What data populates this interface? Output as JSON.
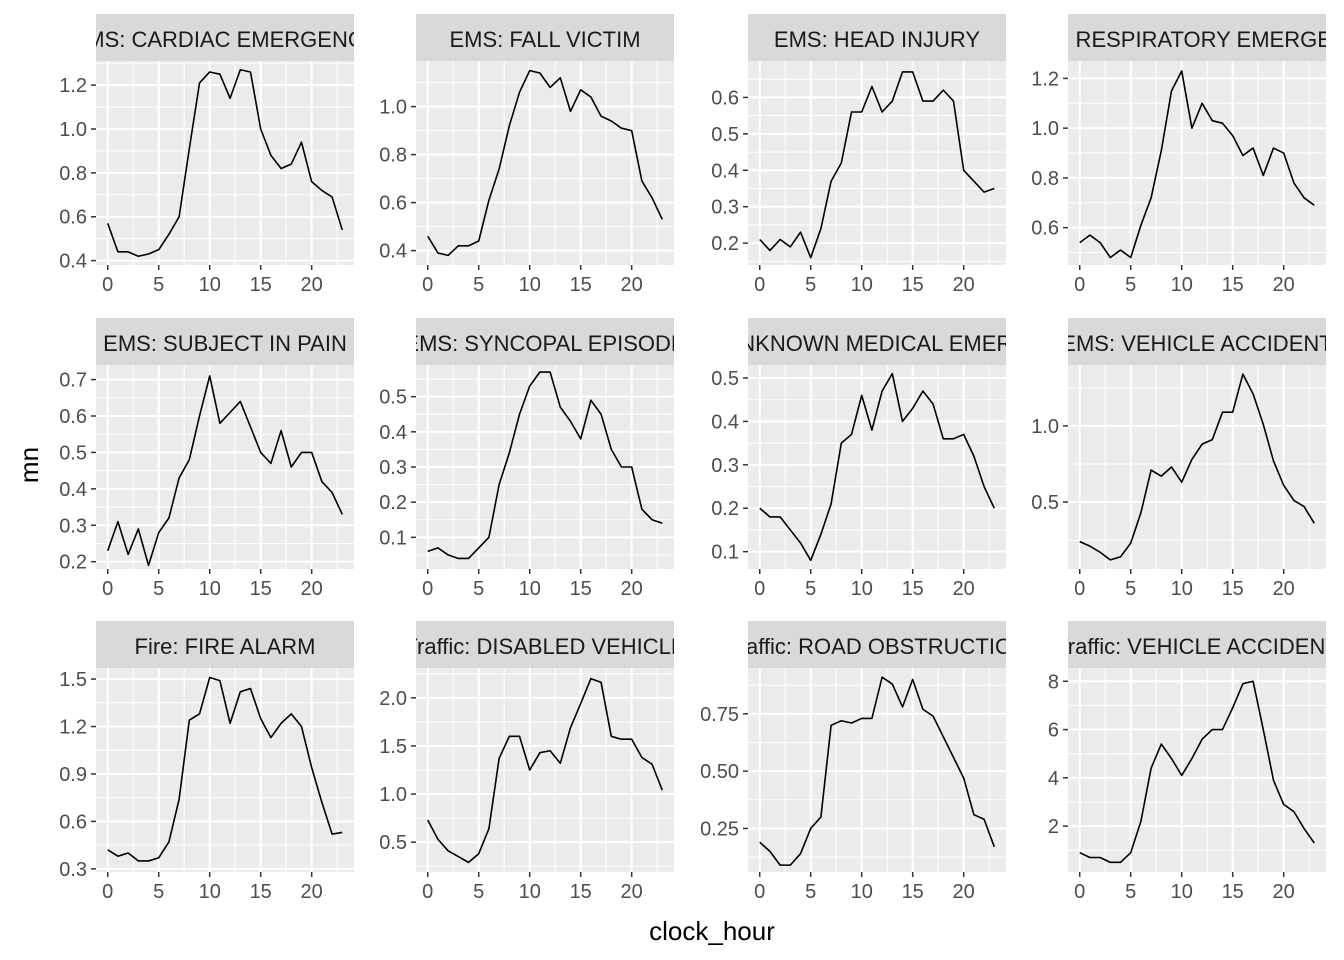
{
  "chart_data": {
    "type": "line",
    "xlabel": "clock_hour",
    "ylabel": "mn",
    "colors": {
      "line": "#000000",
      "panel_background": "#ebebeb",
      "strip_background": "#d9d9d9",
      "grid": "#ffffff"
    },
    "x": [
      0,
      1,
      2,
      3,
      4,
      5,
      6,
      7,
      8,
      9,
      10,
      11,
      12,
      13,
      14,
      15,
      16,
      17,
      18,
      19,
      20,
      21,
      22,
      23
    ],
    "panels": [
      {
        "title": "EMS: CARDIAC EMERGENCY",
        "ylim": [
          0.38,
          1.31
        ],
        "xticks": [
          0,
          5,
          10,
          15,
          20
        ],
        "yticks": [
          0.4,
          0.6,
          0.8,
          1.0,
          1.2
        ],
        "ytick_labels": [
          "0.4",
          "0.6",
          "0.8",
          "1.0",
          "1.2"
        ],
        "values": [
          0.57,
          0.44,
          0.44,
          0.42,
          0.43,
          0.45,
          0.52,
          0.6,
          0.91,
          1.21,
          1.26,
          1.25,
          1.14,
          1.27,
          1.26,
          1.0,
          0.88,
          0.82,
          0.84,
          0.94,
          0.76,
          0.72,
          0.69,
          0.54
        ]
      },
      {
        "title": "EMS: FALL VICTIM",
        "ylim": [
          0.34,
          1.19
        ],
        "xticks": [
          0,
          5,
          10,
          15,
          20
        ],
        "yticks": [
          0.4,
          0.6,
          0.8,
          1.0
        ],
        "ytick_labels": [
          "0.4",
          "0.6",
          "0.8",
          "1.0"
        ],
        "values": [
          0.46,
          0.39,
          0.38,
          0.42,
          0.42,
          0.44,
          0.61,
          0.74,
          0.92,
          1.06,
          1.15,
          1.14,
          1.08,
          1.12,
          0.98,
          1.07,
          1.04,
          0.96,
          0.94,
          0.91,
          0.9,
          0.69,
          0.62,
          0.53
        ]
      },
      {
        "title": "EMS: HEAD INJURY",
        "ylim": [
          0.14,
          0.7
        ],
        "xticks": [
          0,
          5,
          10,
          15,
          20
        ],
        "yticks": [
          0.2,
          0.3,
          0.4,
          0.5,
          0.6
        ],
        "ytick_labels": [
          "0.2",
          "0.3",
          "0.4",
          "0.5",
          "0.6"
        ],
        "values": [
          0.21,
          0.18,
          0.21,
          0.19,
          0.23,
          0.16,
          0.24,
          0.37,
          0.42,
          0.56,
          0.56,
          0.63,
          0.56,
          0.59,
          0.67,
          0.67,
          0.59,
          0.59,
          0.62,
          0.59,
          0.4,
          0.37,
          0.34,
          0.35
        ]
      },
      {
        "title": "EMS: RESPIRATORY EMERGENCY",
        "ylim": [
          0.45,
          1.27
        ],
        "xticks": [
          0,
          5,
          10,
          15,
          20
        ],
        "yticks": [
          0.6,
          0.8,
          1.0,
          1.2
        ],
        "ytick_labels": [
          "0.6",
          "0.8",
          "1.0",
          "1.2"
        ],
        "values": [
          0.54,
          0.57,
          0.54,
          0.48,
          0.51,
          0.48,
          0.61,
          0.72,
          0.91,
          1.15,
          1.23,
          1.0,
          1.1,
          1.03,
          1.02,
          0.97,
          0.89,
          0.92,
          0.81,
          0.92,
          0.9,
          0.78,
          0.72,
          0.69
        ]
      },
      {
        "title": "EMS: SUBJECT IN PAIN",
        "ylim": [
          0.18,
          0.74
        ],
        "xticks": [
          0,
          5,
          10,
          15,
          20
        ],
        "yticks": [
          0.2,
          0.3,
          0.4,
          0.5,
          0.6,
          0.7
        ],
        "ytick_labels": [
          "0.2",
          "0.3",
          "0.4",
          "0.5",
          "0.6",
          "0.7"
        ],
        "values": [
          0.23,
          0.31,
          0.22,
          0.29,
          0.19,
          0.28,
          0.32,
          0.43,
          0.48,
          0.6,
          0.71,
          0.58,
          0.61,
          0.64,
          0.57,
          0.5,
          0.47,
          0.56,
          0.46,
          0.5,
          0.5,
          0.42,
          0.39,
          0.33
        ]
      },
      {
        "title": "EMS: SYNCOPAL EPISODE",
        "ylim": [
          0.01,
          0.59
        ],
        "xticks": [
          0,
          5,
          10,
          15,
          20
        ],
        "yticks": [
          0.1,
          0.2,
          0.3,
          0.4,
          0.5
        ],
        "ytick_labels": [
          "0.1",
          "0.2",
          "0.3",
          "0.4",
          "0.5"
        ],
        "values": [
          0.06,
          0.07,
          0.05,
          0.04,
          0.04,
          0.07,
          0.1,
          0.25,
          0.34,
          0.45,
          0.53,
          0.57,
          0.57,
          0.47,
          0.43,
          0.38,
          0.49,
          0.45,
          0.35,
          0.3,
          0.3,
          0.18,
          0.15,
          0.14
        ]
      },
      {
        "title": "EMS: UNKNOWN MEDICAL EMERGENCY",
        "ylim": [
          0.06,
          0.53
        ],
        "xticks": [
          0,
          5,
          10,
          15,
          20
        ],
        "yticks": [
          0.1,
          0.2,
          0.3,
          0.4,
          0.5
        ],
        "ytick_labels": [
          "0.1",
          "0.2",
          "0.3",
          "0.4",
          "0.5"
        ],
        "values": [
          0.2,
          0.18,
          0.18,
          0.15,
          0.12,
          0.08,
          0.14,
          0.21,
          0.35,
          0.37,
          0.46,
          0.38,
          0.47,
          0.51,
          0.4,
          0.43,
          0.47,
          0.44,
          0.36,
          0.36,
          0.37,
          0.32,
          0.25,
          0.2
        ]
      },
      {
        "title": "EMS: VEHICLE ACCIDENT",
        "ylim": [
          0.06,
          1.4
        ],
        "xticks": [
          0,
          5,
          10,
          15,
          20
        ],
        "yticks": [
          0.5,
          1.0
        ],
        "ytick_labels": [
          "0.5",
          "1.0"
        ],
        "values": [
          0.24,
          0.21,
          0.17,
          0.12,
          0.14,
          0.23,
          0.43,
          0.71,
          0.67,
          0.73,
          0.63,
          0.78,
          0.88,
          0.91,
          1.09,
          1.09,
          1.34,
          1.21,
          1.01,
          0.77,
          0.61,
          0.51,
          0.47,
          0.36
        ]
      },
      {
        "title": "Fire: FIRE ALARM",
        "ylim": [
          0.28,
          1.57
        ],
        "xticks": [
          0,
          5,
          10,
          15,
          20
        ],
        "yticks": [
          0.3,
          0.6,
          0.9,
          1.2,
          1.5
        ],
        "ytick_labels": [
          "0.3",
          "0.6",
          "0.9",
          "1.2",
          "1.5"
        ],
        "values": [
          0.42,
          0.38,
          0.4,
          0.35,
          0.35,
          0.37,
          0.47,
          0.74,
          1.24,
          1.28,
          1.51,
          1.49,
          1.22,
          1.42,
          1.44,
          1.25,
          1.13,
          1.22,
          1.28,
          1.2,
          0.94,
          0.72,
          0.52,
          0.53
        ]
      },
      {
        "title": "Traffic: DISABLED VEHICLE",
        "ylim": [
          0.19,
          2.31
        ],
        "xticks": [
          0,
          5,
          10,
          15,
          20
        ],
        "yticks": [
          0.5,
          1.0,
          1.5,
          2.0
        ],
        "ytick_labels": [
          "0.5",
          "1.0",
          "1.5",
          "2.0"
        ],
        "values": [
          0.73,
          0.53,
          0.41,
          0.35,
          0.29,
          0.38,
          0.64,
          1.37,
          1.6,
          1.6,
          1.25,
          1.43,
          1.45,
          1.32,
          1.69,
          1.94,
          2.2,
          2.16,
          1.6,
          1.57,
          1.57,
          1.38,
          1.31,
          1.04
        ]
      },
      {
        "title": "Traffic: ROAD OBSTRUCTION",
        "ylim": [
          0.06,
          0.95
        ],
        "xticks": [
          0,
          5,
          10,
          15,
          20
        ],
        "yticks": [
          0.25,
          0.5,
          0.75
        ],
        "ytick_labels": [
          "0.25",
          "0.50",
          "0.75"
        ],
        "values": [
          0.19,
          0.15,
          0.09,
          0.09,
          0.14,
          0.25,
          0.3,
          0.7,
          0.72,
          0.71,
          0.73,
          0.73,
          0.91,
          0.88,
          0.78,
          0.9,
          0.77,
          0.74,
          0.65,
          0.56,
          0.47,
          0.31,
          0.29,
          0.17
        ]
      },
      {
        "title": "Traffic: VEHICLE ACCIDENT",
        "ylim": [
          0.1,
          8.55
        ],
        "xticks": [
          0,
          5,
          10,
          15,
          20
        ],
        "yticks": [
          2,
          4,
          6,
          8
        ],
        "ytick_labels": [
          "2",
          "4",
          "6",
          "8"
        ],
        "values": [
          0.9,
          0.7,
          0.7,
          0.5,
          0.5,
          0.9,
          2.2,
          4.4,
          5.4,
          4.8,
          4.1,
          4.8,
          5.6,
          6.0,
          6.0,
          6.9,
          7.9,
          8.0,
          6.0,
          3.9,
          2.9,
          2.6,
          1.9,
          1.3
        ]
      }
    ]
  }
}
